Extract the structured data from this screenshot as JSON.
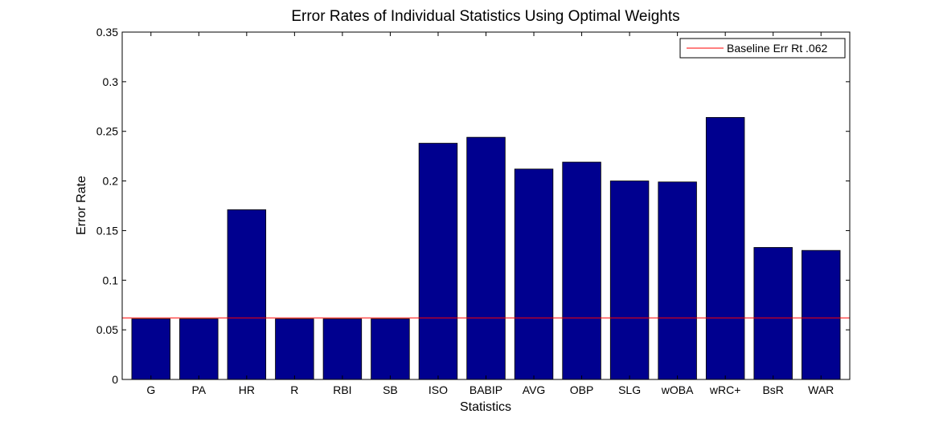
{
  "chart_data": {
    "type": "bar",
    "title": "Error Rates of Individual Statistics Using Optimal Weights",
    "xlabel": "Statistics",
    "ylabel": "Error Rate",
    "categories": [
      "G",
      "PA",
      "HR",
      "R",
      "RBI",
      "SB",
      "ISO",
      "BABIP",
      "AVG",
      "OBP",
      "SLG",
      "wOBA",
      "wRC+",
      "BsR",
      "WAR"
    ],
    "values": [
      0.061,
      0.061,
      0.171,
      0.061,
      0.061,
      0.061,
      0.238,
      0.244,
      0.212,
      0.219,
      0.2,
      0.199,
      0.264,
      0.133,
      0.13
    ],
    "ylim": [
      0,
      0.35
    ],
    "yticks": [
      0,
      0.05,
      0.1,
      0.15,
      0.2,
      0.25,
      0.3,
      0.35
    ],
    "ytick_labels": [
      "0",
      "0.05",
      "0.1",
      "0.15",
      "0.2",
      "0.25",
      "0.3",
      "0.35"
    ],
    "bar_color": "#00008f",
    "baseline": {
      "label": "Baseline Err Rt .062",
      "value": 0.062,
      "color": "#ff0000"
    },
    "legend_position": "top-right",
    "grid": false
  }
}
